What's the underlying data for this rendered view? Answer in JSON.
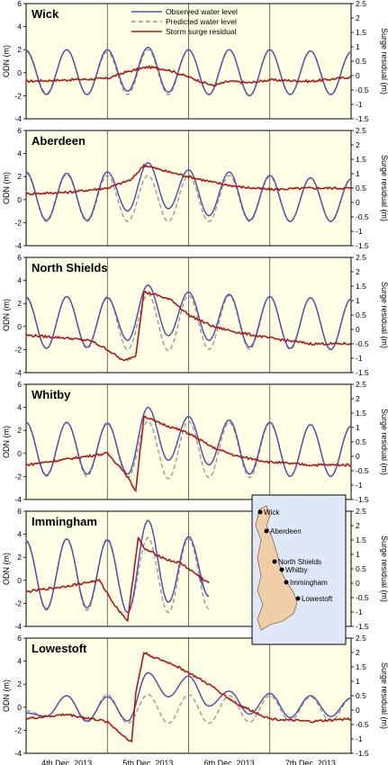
{
  "legend": {
    "observed": "Observed water level",
    "predicted": "Predicted water level",
    "residual": "Storm surge residual"
  },
  "colors": {
    "background": "#ffffe6",
    "observed": "#5a4fa8",
    "predicted": "#9a9a9a",
    "residual": "#b01818",
    "axis": "#000000"
  },
  "axes": {
    "left_label": "ODN (m)",
    "right_label": "Surge residual (m)",
    "x_labels": [
      "4th Dec. 2013",
      "5th Dec. 2013",
      "6th Dec. 2013",
      "7th Dec. 2013"
    ]
  },
  "chart_data": [
    {
      "type": "line",
      "title": "Wick",
      "ylabel": "ODN (m)",
      "y2label": "Surge residual (m)",
      "ylim": [
        -4,
        6
      ],
      "y2lim": [
        -1.5,
        2.5
      ],
      "yticks": [
        -4,
        -2,
        0,
        2,
        4,
        6
      ],
      "y2ticks": [
        -1.5,
        -1.0,
        -0.5,
        0,
        0.5,
        1.0,
        1.5,
        2.0,
        2.5
      ],
      "xlim": [
        0,
        4
      ],
      "x_categories": [
        "4th Dec. 2013",
        "5th Dec. 2013",
        "6th Dec. 2013",
        "7th Dec. 2013"
      ],
      "legend_position": "top-center",
      "series": [
        {
          "name": "Observed water level",
          "axis": "left",
          "x": [
            0.0,
            0.25,
            0.5,
            0.75,
            1.0,
            1.25,
            1.5,
            1.75,
            2.0,
            2.25,
            2.5,
            2.75,
            3.0,
            3.25,
            3.5,
            3.75,
            4.0
          ],
          "y": [
            1.9,
            -1.9,
            2.0,
            -1.9,
            2.0,
            -1.6,
            2.2,
            -1.7,
            2.0,
            -1.9,
            2.0,
            -2.0,
            2.0,
            -1.9,
            1.9,
            -1.9,
            1.8
          ]
        },
        {
          "name": "Predicted water level",
          "axis": "left",
          "x": [
            0.0,
            0.25,
            0.5,
            0.75,
            1.0,
            1.25,
            1.5,
            1.75,
            2.0,
            2.25,
            2.5,
            2.75,
            3.0,
            3.25,
            3.5,
            3.75,
            4.0
          ],
          "y": [
            2.0,
            -1.8,
            2.0,
            -1.9,
            1.8,
            -1.9,
            2.0,
            -1.9,
            2.0,
            -1.9,
            2.0,
            -2.0,
            2.0,
            -1.9,
            1.9,
            -1.9,
            1.8
          ]
        },
        {
          "name": "Storm surge residual",
          "axis": "right",
          "x": [
            0.0,
            0.5,
            1.0,
            1.2,
            1.5,
            1.75,
            2.0,
            2.3,
            2.5,
            2.75,
            3.0,
            3.5,
            4.0
          ],
          "y": [
            -0.2,
            -0.15,
            -0.1,
            0.1,
            0.3,
            0.2,
            -0.05,
            -0.35,
            -0.2,
            -0.25,
            -0.15,
            -0.2,
            -0.05
          ]
        }
      ]
    },
    {
      "type": "line",
      "title": "Aberdeen",
      "ylabel": "ODN (m)",
      "y2label": "Surge residual (m)",
      "ylim": [
        -4,
        6
      ],
      "y2lim": [
        -1.5,
        2.5
      ],
      "yticks": [
        -4,
        -2,
        0,
        2,
        4,
        6
      ],
      "y2ticks": [
        -1.5,
        -1.0,
        -0.5,
        0,
        0.5,
        1.0,
        1.5,
        2.0,
        2.5
      ],
      "xlim": [
        0,
        4
      ],
      "x_categories": [
        "4th Dec. 2013",
        "5th Dec. 2013",
        "6th Dec. 2013",
        "7th Dec. 2013"
      ],
      "series": [
        {
          "name": "Observed water level",
          "axis": "left",
          "x": [
            0.0,
            0.25,
            0.5,
            0.75,
            1.0,
            1.25,
            1.5,
            1.75,
            2.0,
            2.25,
            2.5,
            2.75,
            3.0,
            3.25,
            3.5,
            3.75,
            4.0
          ],
          "y": [
            2.4,
            -1.8,
            2.3,
            -1.8,
            2.4,
            -1.0,
            3.2,
            -0.8,
            2.6,
            -1.4,
            2.4,
            -1.8,
            2.1,
            -1.9,
            1.9,
            -1.9,
            1.8
          ]
        },
        {
          "name": "Predicted water level",
          "axis": "left",
          "x": [
            0.0,
            0.25,
            0.5,
            0.75,
            1.0,
            1.25,
            1.5,
            1.75,
            2.0,
            2.25,
            2.5,
            2.75,
            3.0,
            3.25,
            3.5,
            3.75,
            4.0
          ],
          "y": [
            2.3,
            -1.9,
            2.2,
            -1.9,
            2.1,
            -1.9,
            2.1,
            -1.9,
            2.1,
            -1.9,
            2.1,
            -1.9,
            2.0,
            -1.9,
            1.9,
            -1.9,
            1.8
          ]
        },
        {
          "name": "Storm surge residual",
          "axis": "right",
          "x": [
            0.0,
            0.5,
            1.0,
            1.3,
            1.45,
            1.7,
            2.0,
            2.3,
            2.6,
            3.0,
            3.5,
            4.0
          ],
          "y": [
            0.3,
            0.35,
            0.5,
            0.8,
            1.3,
            1.1,
            0.9,
            0.7,
            0.55,
            0.45,
            0.5,
            0.5
          ]
        }
      ]
    },
    {
      "type": "line",
      "title": "North Shields",
      "ylabel": "ODN (m)",
      "y2label": "Surge residual (m)",
      "ylim": [
        -4,
        6
      ],
      "y2lim": [
        -1.5,
        2.5
      ],
      "yticks": [
        -4,
        -2,
        0,
        2,
        4,
        6
      ],
      "y2ticks": [
        -1.5,
        -1.0,
        -0.5,
        0,
        0.5,
        1.0,
        1.5,
        2.0,
        2.5
      ],
      "xlim": [
        0,
        4
      ],
      "x_categories": [
        "4th Dec. 2013",
        "5th Dec. 2013",
        "6th Dec. 2013",
        "7th Dec. 2013"
      ],
      "series": [
        {
          "name": "Observed water level",
          "axis": "left",
          "x": [
            0.0,
            0.25,
            0.5,
            0.75,
            1.0,
            1.25,
            1.5,
            1.75,
            2.0,
            2.25,
            2.5,
            2.75,
            3.0,
            3.25,
            3.5,
            3.75,
            4.0
          ],
          "y": [
            2.5,
            -1.9,
            2.6,
            -1.8,
            2.5,
            -1.2,
            3.6,
            -0.8,
            3.0,
            -1.2,
            2.8,
            -1.8,
            2.6,
            -1.9,
            2.5,
            -2.0,
            2.4
          ]
        },
        {
          "name": "Predicted water level",
          "axis": "left",
          "x": [
            0.0,
            0.25,
            0.5,
            0.75,
            1.0,
            1.25,
            1.5,
            1.75,
            2.0,
            2.25,
            2.5,
            2.75,
            3.0,
            3.25,
            3.5,
            3.75,
            4.0
          ],
          "y": [
            2.6,
            -1.9,
            2.6,
            -1.9,
            2.6,
            -2.0,
            2.8,
            -2.1,
            2.7,
            -2.0,
            2.7,
            -2.0,
            2.6,
            -2.0,
            2.5,
            -2.0,
            2.4
          ]
        },
        {
          "name": "Storm surge residual",
          "axis": "right",
          "x": [
            0.0,
            0.5,
            0.8,
            1.0,
            1.2,
            1.35,
            1.45,
            1.6,
            1.8,
            2.0,
            2.3,
            2.6,
            3.0,
            3.5,
            4.0
          ],
          "y": [
            -0.2,
            -0.3,
            -0.4,
            -0.7,
            -1.1,
            -0.9,
            1.3,
            1.2,
            1.0,
            0.5,
            0.1,
            -0.1,
            -0.3,
            -0.5,
            -0.5
          ]
        }
      ]
    },
    {
      "type": "line",
      "title": "Whitby",
      "ylabel": "ODN (m)",
      "y2label": "Surge residual (m)",
      "ylim": [
        -4,
        6
      ],
      "y2lim": [
        -1.5,
        2.5
      ],
      "yticks": [
        -4,
        -2,
        0,
        2,
        4,
        6
      ],
      "y2ticks": [
        -1.5,
        -1.0,
        -0.5,
        0,
        0.5,
        1.0,
        1.5,
        2.0,
        2.5
      ],
      "xlim": [
        0,
        4
      ],
      "x_categories": [
        "4th Dec. 2013",
        "5th Dec. 2013",
        "6th Dec. 2013",
        "7th Dec. 2013"
      ],
      "series": [
        {
          "name": "Observed water level",
          "axis": "left",
          "x": [
            0.0,
            0.25,
            0.5,
            0.75,
            1.0,
            1.25,
            1.5,
            1.75,
            2.0,
            2.25,
            2.5,
            2.75,
            3.0,
            3.25,
            3.5,
            3.75,
            4.0
          ],
          "y": [
            2.7,
            -1.9,
            2.7,
            -1.8,
            2.6,
            -1.8,
            4.0,
            -0.6,
            3.2,
            -1.0,
            2.9,
            -1.8,
            2.7,
            -2.0,
            2.5,
            -2.0,
            2.4
          ]
        },
        {
          "name": "Predicted water level",
          "axis": "left",
          "x": [
            0.0,
            0.25,
            0.5,
            0.75,
            1.0,
            1.25,
            1.5,
            1.75,
            2.0,
            2.25,
            2.5,
            2.75,
            3.0,
            3.25,
            3.5,
            3.75,
            4.0
          ],
          "y": [
            2.7,
            -2.0,
            2.7,
            -2.0,
            2.7,
            -2.1,
            2.8,
            -2.2,
            2.8,
            -2.1,
            2.7,
            -2.1,
            2.6,
            -2.0,
            2.5,
            -2.0,
            2.4
          ]
        },
        {
          "name": "Storm surge residual",
          "axis": "right",
          "x": [
            0.0,
            0.5,
            1.0,
            1.2,
            1.35,
            1.45,
            1.6,
            1.8,
            2.0,
            2.3,
            2.6,
            3.0,
            3.5,
            4.0
          ],
          "y": [
            -0.3,
            -0.1,
            0.1,
            -0.5,
            -1.2,
            1.4,
            1.2,
            1.0,
            0.8,
            0.3,
            0.0,
            -0.2,
            -0.3,
            -0.3
          ]
        }
      ]
    },
    {
      "type": "line",
      "title": "Immingham",
      "ylabel": "ODN (m)",
      "y2label": "Surge residual (m)",
      "ylim": [
        -4,
        6
      ],
      "y2lim": [
        -1.5,
        2.5
      ],
      "yticks": [
        -4,
        -2,
        0,
        2,
        4,
        6
      ],
      "y2ticks": [
        -1.5,
        -1.0,
        -0.5,
        0,
        0.5,
        1.0,
        1.5,
        2.0,
        2.5
      ],
      "xlim": [
        0,
        4
      ],
      "x_categories": [
        "4th Dec. 2013",
        "5th Dec. 2013",
        "6th Dec. 2013",
        "7th Dec. 2013"
      ],
      "series": [
        {
          "name": "Observed water level",
          "axis": "left",
          "x": [
            0.0,
            0.25,
            0.5,
            0.75,
            1.0,
            1.25,
            1.5,
            1.75,
            2.0,
            2.25,
            2.1
          ],
          "y": [
            3.4,
            -2.5,
            3.6,
            -2.4,
            3.5,
            -2.8,
            5.2,
            -1.9,
            3.8,
            -1.4,
            0.5
          ]
        },
        {
          "name": "Predicted water level",
          "axis": "left",
          "x": [
            0.0,
            0.25,
            0.5,
            0.75,
            1.0,
            1.25,
            1.5,
            1.75,
            2.0,
            2.25
          ],
          "y": [
            3.5,
            -2.6,
            3.6,
            -2.6,
            3.6,
            -2.8,
            3.7,
            -2.8,
            3.6,
            -2.5
          ]
        },
        {
          "name": "Storm surge residual",
          "axis": "right",
          "x": [
            0.0,
            0.5,
            0.9,
            1.1,
            1.25,
            1.38,
            1.45,
            1.6,
            1.75,
            1.9,
            2.1,
            2.25
          ],
          "y": [
            -0.3,
            -0.1,
            0.1,
            -0.8,
            -1.3,
            1.6,
            1.2,
            1.0,
            0.8,
            0.7,
            0.3,
            0.0
          ]
        }
      ]
    },
    {
      "type": "line",
      "title": "Lowestoft",
      "ylabel": "ODN (m)",
      "y2label": "Surge residual (m)",
      "ylim": [
        -4,
        6
      ],
      "y2lim": [
        -1.5,
        2.5
      ],
      "yticks": [
        -4,
        -2,
        0,
        2,
        4,
        6
      ],
      "y2ticks": [
        -1.5,
        -1.0,
        -0.5,
        0,
        0.5,
        1.0,
        1.5,
        2.0,
        2.5
      ],
      "xlim": [
        0,
        4
      ],
      "x_categories": [
        "4th Dec. 2013",
        "5th Dec. 2013",
        "6th Dec. 2013",
        "7th Dec. 2013"
      ],
      "series": [
        {
          "name": "Observed water level",
          "axis": "left",
          "x": [
            0.0,
            0.25,
            0.5,
            0.75,
            1.0,
            1.25,
            1.5,
            1.75,
            2.0,
            2.25,
            2.5,
            2.75,
            3.0,
            3.25,
            3.5,
            3.75,
            4.0
          ],
          "y": [
            -0.5,
            -0.8,
            1.0,
            -1.2,
            0.9,
            -1.2,
            3.0,
            0.9,
            2.7,
            0.1,
            1.4,
            -0.6,
            1.2,
            -0.9,
            1.0,
            -0.8,
            0.8
          ]
        },
        {
          "name": "Predicted water level",
          "axis": "left",
          "x": [
            0.0,
            0.25,
            0.5,
            0.75,
            1.0,
            1.25,
            1.5,
            1.75,
            2.0,
            2.25,
            2.5,
            2.75,
            3.0,
            3.25,
            3.5,
            3.75,
            4.0
          ],
          "y": [
            -0.3,
            -0.8,
            1.0,
            -1.3,
            1.1,
            -1.4,
            1.1,
            -1.4,
            1.1,
            -1.4,
            1.0,
            -1.3,
            1.0,
            -1.2,
            0.9,
            -1.2,
            0.8
          ]
        },
        {
          "name": "Storm surge residual",
          "axis": "right",
          "x": [
            0.0,
            0.5,
            1.0,
            1.2,
            1.3,
            1.35,
            1.45,
            1.6,
            1.8,
            2.0,
            2.3,
            2.6,
            3.0,
            3.5,
            4.0
          ],
          "y": [
            -0.3,
            -0.15,
            -0.4,
            -0.9,
            -1.1,
            0.6,
            2.0,
            1.8,
            1.6,
            1.3,
            0.8,
            0.2,
            -0.3,
            -0.4,
            -0.3
          ]
        }
      ]
    }
  ],
  "inset_map": {
    "places": [
      "Wick",
      "Aberdeen",
      "North Shields",
      "Whitby",
      "Immingham",
      "Lowestoft"
    ]
  }
}
